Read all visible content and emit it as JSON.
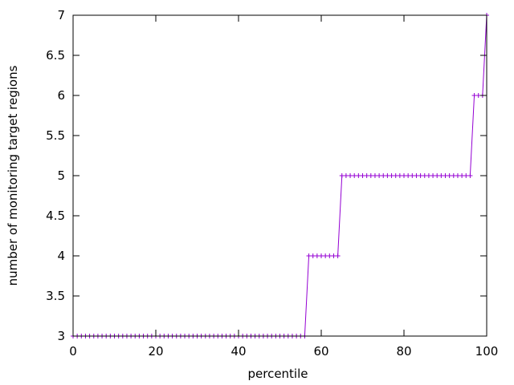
{
  "chart_data": {
    "type": "line",
    "title": "",
    "xlabel": "percentile",
    "ylabel": "number of monitoring target regions",
    "xlim": [
      0,
      100
    ],
    "ylim": [
      3,
      7
    ],
    "xticks": [
      "0",
      "20",
      "40",
      "60",
      "80",
      "100"
    ],
    "yticks": [
      "3",
      "3.5",
      "4",
      "4.5",
      "5",
      "5.5",
      "6",
      "6.5",
      "7"
    ],
    "grid": false,
    "legend": "none",
    "series": [
      {
        "color": "#9400d3",
        "marker": "plus",
        "points": [
          [
            0,
            3
          ],
          [
            1,
            3
          ],
          [
            2,
            3
          ],
          [
            3,
            3
          ],
          [
            4,
            3
          ],
          [
            5,
            3
          ],
          [
            6,
            3
          ],
          [
            7,
            3
          ],
          [
            8,
            3
          ],
          [
            9,
            3
          ],
          [
            10,
            3
          ],
          [
            11,
            3
          ],
          [
            12,
            3
          ],
          [
            13,
            3
          ],
          [
            14,
            3
          ],
          [
            15,
            3
          ],
          [
            16,
            3
          ],
          [
            17,
            3
          ],
          [
            18,
            3
          ],
          [
            19,
            3
          ],
          [
            20,
            3
          ],
          [
            21,
            3
          ],
          [
            22,
            3
          ],
          [
            23,
            3
          ],
          [
            24,
            3
          ],
          [
            25,
            3
          ],
          [
            26,
            3
          ],
          [
            27,
            3
          ],
          [
            28,
            3
          ],
          [
            29,
            3
          ],
          [
            30,
            3
          ],
          [
            31,
            3
          ],
          [
            32,
            3
          ],
          [
            33,
            3
          ],
          [
            34,
            3
          ],
          [
            35,
            3
          ],
          [
            36,
            3
          ],
          [
            37,
            3
          ],
          [
            38,
            3
          ],
          [
            39,
            3
          ],
          [
            40,
            3
          ],
          [
            41,
            3
          ],
          [
            42,
            3
          ],
          [
            43,
            3
          ],
          [
            44,
            3
          ],
          [
            45,
            3
          ],
          [
            46,
            3
          ],
          [
            47,
            3
          ],
          [
            48,
            3
          ],
          [
            49,
            3
          ],
          [
            50,
            3
          ],
          [
            51,
            3
          ],
          [
            52,
            3
          ],
          [
            53,
            3
          ],
          [
            54,
            3
          ],
          [
            55,
            3
          ],
          [
            56,
            3
          ],
          [
            57,
            4
          ],
          [
            58,
            4
          ],
          [
            59,
            4
          ],
          [
            60,
            4
          ],
          [
            61,
            4
          ],
          [
            62,
            4
          ],
          [
            63,
            4
          ],
          [
            64,
            4
          ],
          [
            65,
            5
          ],
          [
            66,
            5
          ],
          [
            67,
            5
          ],
          [
            68,
            5
          ],
          [
            69,
            5
          ],
          [
            70,
            5
          ],
          [
            71,
            5
          ],
          [
            72,
            5
          ],
          [
            73,
            5
          ],
          [
            74,
            5
          ],
          [
            75,
            5
          ],
          [
            76,
            5
          ],
          [
            77,
            5
          ],
          [
            78,
            5
          ],
          [
            79,
            5
          ],
          [
            80,
            5
          ],
          [
            81,
            5
          ],
          [
            82,
            5
          ],
          [
            83,
            5
          ],
          [
            84,
            5
          ],
          [
            85,
            5
          ],
          [
            86,
            5
          ],
          [
            87,
            5
          ],
          [
            88,
            5
          ],
          [
            89,
            5
          ],
          [
            90,
            5
          ],
          [
            91,
            5
          ],
          [
            92,
            5
          ],
          [
            93,
            5
          ],
          [
            94,
            5
          ],
          [
            95,
            5
          ],
          [
            96,
            5
          ],
          [
            97,
            6
          ],
          [
            98,
            6
          ],
          [
            99,
            6
          ],
          [
            100,
            7
          ]
        ]
      }
    ]
  }
}
